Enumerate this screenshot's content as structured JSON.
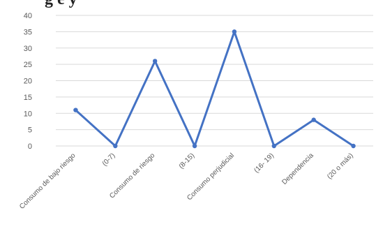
{
  "heading_fragment": "g     e    y",
  "chart_data": {
    "type": "line",
    "title": "",
    "xlabel": "",
    "ylabel": "",
    "categories": [
      "Consumo de bajo riesgo",
      "(0-7)",
      "Consumo de riesgo",
      "(8-15)",
      "Consumo perjudicial",
      "(16- 19)",
      "Dependencia",
      "(20 o más)"
    ],
    "series": [
      {
        "values": [
          11,
          0,
          26,
          0,
          35,
          0,
          8,
          0
        ]
      }
    ],
    "ylim": [
      0,
      40
    ],
    "yticks": [
      0,
      5,
      10,
      15,
      20,
      25,
      30,
      35,
      40
    ],
    "grid": true,
    "legend": "none",
    "colors": {
      "line": "#4472C4",
      "grid": "#d9d9d9",
      "tick_text": "#595959"
    }
  }
}
